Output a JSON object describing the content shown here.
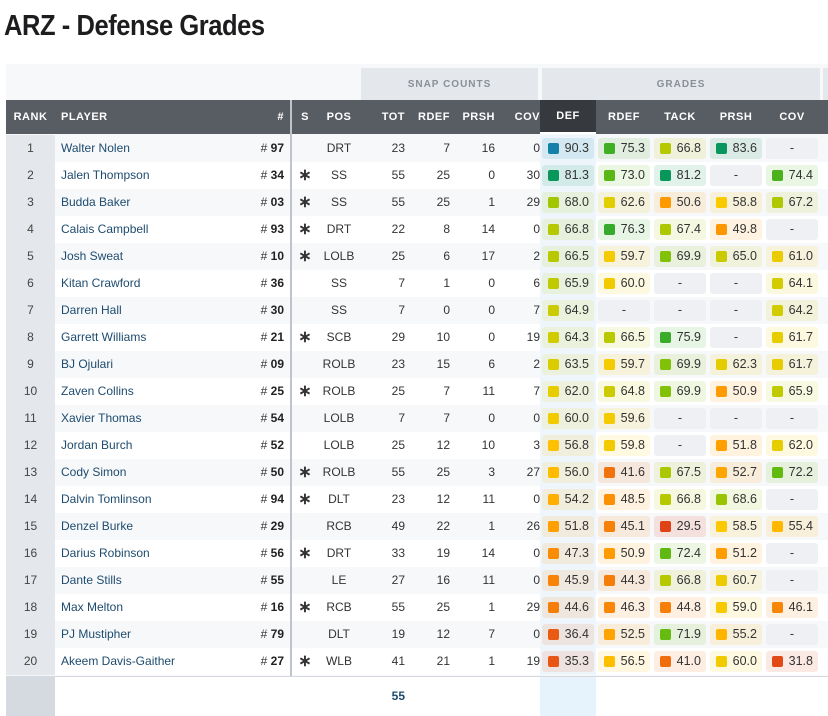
{
  "title": "ARZ - Defense Grades",
  "groups": {
    "snap": "SNAP COUNTS",
    "grades": "GRADES"
  },
  "columns": [
    "RANK",
    "PLAYER",
    "#",
    "S",
    "POS",
    "TOT",
    "RDEF",
    "PRSH",
    "COV",
    "DEF",
    "RDEF",
    "TACK",
    "PRSH",
    "COV"
  ],
  "sorted_column": "DEF",
  "footer": {
    "tot": "55"
  },
  "rows": [
    {
      "rank": "1",
      "player": "Walter Nolen",
      "num": "97",
      "s": "",
      "pos": "DRT",
      "tot": "23",
      "rdef": "7",
      "prsh": "16",
      "cov": "0",
      "grades": [
        "90.3",
        "75.3",
        "66.8",
        "83.6",
        "-"
      ]
    },
    {
      "rank": "2",
      "player": "Jalen Thompson",
      "num": "34",
      "s": "*",
      "pos": "SS",
      "tot": "55",
      "rdef": "25",
      "prsh": "0",
      "cov": "30",
      "grades": [
        "81.3",
        "73.0",
        "81.2",
        "-",
        "74.4"
      ]
    },
    {
      "rank": "3",
      "player": "Budda Baker",
      "num": "03",
      "s": "*",
      "pos": "SS",
      "tot": "55",
      "rdef": "25",
      "prsh": "1",
      "cov": "29",
      "grades": [
        "68.0",
        "62.6",
        "50.6",
        "58.8",
        "67.2"
      ]
    },
    {
      "rank": "4",
      "player": "Calais Campbell",
      "num": "93",
      "s": "*",
      "pos": "DRT",
      "tot": "22",
      "rdef": "8",
      "prsh": "14",
      "cov": "0",
      "grades": [
        "66.8",
        "76.3",
        "67.4",
        "49.8",
        "-"
      ]
    },
    {
      "rank": "5",
      "player": "Josh Sweat",
      "num": "10",
      "s": "*",
      "pos": "LOLB",
      "tot": "25",
      "rdef": "6",
      "prsh": "17",
      "cov": "2",
      "grades": [
        "66.5",
        "59.7",
        "69.9",
        "65.0",
        "61.0"
      ]
    },
    {
      "rank": "6",
      "player": "Kitan Crawford",
      "num": "36",
      "s": "",
      "pos": "SS",
      "tot": "7",
      "rdef": "1",
      "prsh": "0",
      "cov": "6",
      "grades": [
        "65.9",
        "60.0",
        "-",
        "-",
        "64.1"
      ]
    },
    {
      "rank": "7",
      "player": "Darren Hall",
      "num": "30",
      "s": "",
      "pos": "SS",
      "tot": "7",
      "rdef": "0",
      "prsh": "0",
      "cov": "7",
      "grades": [
        "64.9",
        "-",
        "-",
        "-",
        "64.2"
      ]
    },
    {
      "rank": "8",
      "player": "Garrett Williams",
      "num": "21",
      "s": "*",
      "pos": "SCB",
      "tot": "29",
      "rdef": "10",
      "prsh": "0",
      "cov": "19",
      "grades": [
        "64.3",
        "66.5",
        "75.9",
        "-",
        "61.7"
      ]
    },
    {
      "rank": "9",
      "player": "BJ Ojulari",
      "num": "09",
      "s": "",
      "pos": "ROLB",
      "tot": "23",
      "rdef": "15",
      "prsh": "6",
      "cov": "2",
      "grades": [
        "63.5",
        "59.7",
        "69.9",
        "62.3",
        "61.7"
      ]
    },
    {
      "rank": "10",
      "player": "Zaven Collins",
      "num": "25",
      "s": "*",
      "pos": "ROLB",
      "tot": "25",
      "rdef": "7",
      "prsh": "11",
      "cov": "7",
      "grades": [
        "62.0",
        "64.8",
        "69.9",
        "50.9",
        "65.9"
      ]
    },
    {
      "rank": "11",
      "player": "Xavier Thomas",
      "num": "54",
      "s": "",
      "pos": "LOLB",
      "tot": "7",
      "rdef": "7",
      "prsh": "0",
      "cov": "0",
      "grades": [
        "60.0",
        "59.6",
        "-",
        "-",
        "-"
      ]
    },
    {
      "rank": "12",
      "player": "Jordan Burch",
      "num": "52",
      "s": "",
      "pos": "LOLB",
      "tot": "25",
      "rdef": "12",
      "prsh": "10",
      "cov": "3",
      "grades": [
        "56.8",
        "59.8",
        "-",
        "51.8",
        "62.0"
      ]
    },
    {
      "rank": "13",
      "player": "Cody Simon",
      "num": "50",
      "s": "*",
      "pos": "ROLB",
      "tot": "55",
      "rdef": "25",
      "prsh": "3",
      "cov": "27",
      "grades": [
        "56.0",
        "41.6",
        "67.5",
        "52.7",
        "72.2"
      ]
    },
    {
      "rank": "14",
      "player": "Dalvin Tomlinson",
      "num": "94",
      "s": "*",
      "pos": "DLT",
      "tot": "23",
      "rdef": "12",
      "prsh": "11",
      "cov": "0",
      "grades": [
        "54.2",
        "48.5",
        "66.8",
        "68.6",
        "-"
      ]
    },
    {
      "rank": "15",
      "player": "Denzel Burke",
      "num": "29",
      "s": "",
      "pos": "RCB",
      "tot": "49",
      "rdef": "22",
      "prsh": "1",
      "cov": "26",
      "grades": [
        "51.8",
        "45.1",
        "29.5",
        "58.5",
        "55.4"
      ]
    },
    {
      "rank": "16",
      "player": "Darius Robinson",
      "num": "56",
      "s": "*",
      "pos": "DRT",
      "tot": "33",
      "rdef": "19",
      "prsh": "14",
      "cov": "0",
      "grades": [
        "47.3",
        "50.9",
        "72.4",
        "51.2",
        "-"
      ]
    },
    {
      "rank": "17",
      "player": "Dante Stills",
      "num": "55",
      "s": "",
      "pos": "LE",
      "tot": "27",
      "rdef": "16",
      "prsh": "11",
      "cov": "0",
      "grades": [
        "45.9",
        "44.3",
        "66.8",
        "60.7",
        "-"
      ]
    },
    {
      "rank": "18",
      "player": "Max Melton",
      "num": "16",
      "s": "*",
      "pos": "RCB",
      "tot": "55",
      "rdef": "25",
      "prsh": "1",
      "cov": "29",
      "grades": [
        "44.6",
        "46.3",
        "44.8",
        "59.0",
        "46.1"
      ]
    },
    {
      "rank": "19",
      "player": "PJ Mustipher",
      "num": "79",
      "s": "",
      "pos": "DLT",
      "tot": "19",
      "rdef": "12",
      "prsh": "7",
      "cov": "0",
      "grades": [
        "36.4",
        "52.5",
        "71.9",
        "55.2",
        "-"
      ]
    },
    {
      "rank": "20",
      "player": "Akeem Davis-Gaither",
      "num": "27",
      "s": "*",
      "pos": "WLB",
      "tot": "41",
      "rdef": "21",
      "prsh": "1",
      "cov": "19",
      "grades": [
        "35.3",
        "56.5",
        "41.0",
        "60.0",
        "31.8"
      ]
    }
  ]
}
